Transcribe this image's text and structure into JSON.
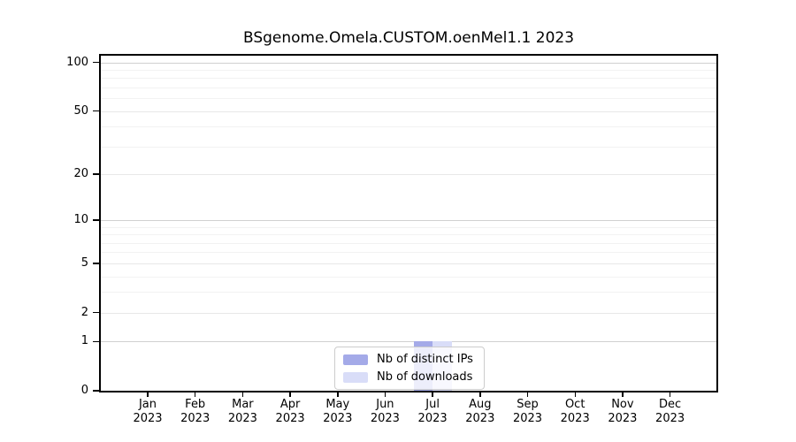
{
  "chart_data": {
    "type": "bar",
    "title": "BSgenome.Omela.CUSTOM.oenMel1.1 2023",
    "categories": [
      "Jan",
      "Feb",
      "Mar",
      "Apr",
      "May",
      "Jun",
      "Jul",
      "Aug",
      "Sep",
      "Oct",
      "Nov",
      "Dec"
    ],
    "x_year": "2023",
    "series": [
      {
        "name": "Nb of distinct IPs",
        "color": "#a4aae8",
        "values": [
          0,
          0,
          0,
          0,
          0,
          0,
          1,
          0,
          0,
          0,
          0,
          0
        ]
      },
      {
        "name": "Nb of downloads",
        "color": "#d9ddf8",
        "values": [
          0,
          0,
          0,
          0,
          0,
          0,
          1,
          0,
          0,
          0,
          0,
          0
        ]
      }
    ],
    "yscale": "log1p",
    "ylim": [
      0,
      110
    ],
    "yticks": [
      0,
      1,
      2,
      5,
      10,
      20,
      50,
      100
    ],
    "yticks_emphasized": [
      1,
      10,
      100
    ],
    "yticks_minor": [
      3,
      4,
      6,
      7,
      8,
      9,
      30,
      40,
      60,
      70,
      80,
      90
    ],
    "grid": "horizontal",
    "legend_position": "lower center",
    "xlabel": "",
    "ylabel": ""
  },
  "colors": {
    "background": "#ffffff",
    "axis": "#000000",
    "grid_power_of_ten": "#d0d0d0",
    "grid_labeled": "#e8e8e8",
    "grid_minor": "#f2f2f2",
    "legend_border": "#cccccc",
    "legend_background": "rgba(255,255,255,0.8)",
    "text": "#000000"
  }
}
